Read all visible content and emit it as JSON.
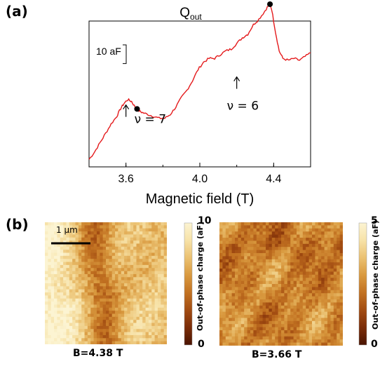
{
  "panel_a": {
    "label": "(a)",
    "chart_data": {
      "type": "line",
      "title": "Q",
      "title_sub": "out",
      "xlabel": "Magnetic field (T)",
      "ylabel": "",
      "xlim": [
        3.4,
        4.6
      ],
      "xticks": [
        3.6,
        4.0,
        4.4
      ],
      "xtick_labels": [
        "3.6",
        "4.0",
        "4.4"
      ],
      "scale_bar_label": "10 aF",
      "scale_bar_value_aF": 10,
      "y_unit": "aF",
      "ylim_aF": [
        0,
        75
      ],
      "series": [
        {
          "x": [
            3.4,
            3.43,
            3.46,
            3.49,
            3.52,
            3.55,
            3.57,
            3.59,
            3.61,
            3.63,
            3.65,
            3.67,
            3.69,
            3.72,
            3.75,
            3.78,
            3.81,
            3.84,
            3.87,
            3.9,
            3.93,
            3.96,
            3.99,
            4.02,
            4.05,
            4.08,
            4.11,
            4.14,
            4.17,
            4.2,
            4.23,
            4.26,
            4.29,
            4.32,
            4.35,
            4.37,
            4.38,
            4.39,
            4.41,
            4.43,
            4.45,
            4.48,
            4.51,
            4.54,
            4.57,
            4.6
          ],
          "y": [
            4,
            8,
            13,
            18,
            23,
            27,
            31,
            34,
            36,
            35,
            32,
            30,
            29,
            28,
            27,
            26,
            26,
            28,
            32,
            37,
            41,
            46,
            52,
            56,
            58,
            58,
            60,
            62,
            63,
            66,
            69,
            71,
            76,
            79,
            83,
            86,
            87,
            84,
            72,
            62,
            58,
            57,
            58,
            57,
            59,
            61
          ]
        }
      ],
      "markers": [
        {
          "x": 3.66,
          "y": 31
        },
        {
          "x": 4.38,
          "y": 87
        }
      ],
      "annotations": [
        {
          "text": "ν = 7",
          "x": 3.6,
          "y": 35
        },
        {
          "text": "ν = 6",
          "x": 4.2,
          "y": 50
        }
      ]
    }
  },
  "panel_b": {
    "label": "(b)",
    "scalebar_label": "1 μm",
    "maps": [
      {
        "caption": "B=4.38 T",
        "cbar_max": "10",
        "cbar_min": "0",
        "cbar_label": "Out-of-phase charge (aF)"
      },
      {
        "caption": "B=3.66 T",
        "cbar_max": "5",
        "cbar_min": "0",
        "cbar_label": "Out-of-phase charge (aF)"
      }
    ],
    "colormap": [
      "#4a1402",
      "#7a2c08",
      "#a24c12",
      "#c27222",
      "#d9993f",
      "#ebc171",
      "#f7e2a8",
      "#fcf4d2"
    ]
  }
}
